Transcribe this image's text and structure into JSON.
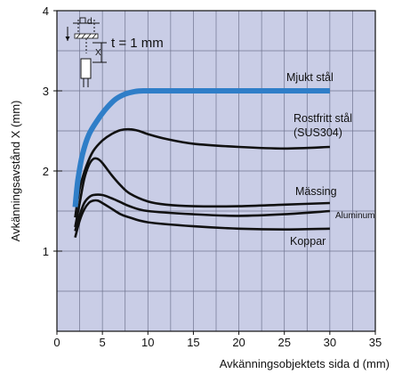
{
  "chart_data": {
    "type": "line",
    "ylabel": "Avkänningsavstånd X (mm)",
    "xlabel": "Avkänningsobjektets sida d (mm)",
    "xlim": [
      0,
      35
    ],
    "ylim": [
      0,
      4
    ],
    "x_ticks": [
      "0",
      "5",
      "10",
      "15",
      "20",
      "25",
      "30",
      "35"
    ],
    "y_ticks": [
      "1",
      "2",
      "3",
      "4"
    ],
    "grid": true,
    "background": "#c9cde6",
    "inset": {
      "t_label": "t = 1 mm",
      "d_label": "d",
      "x_label": "X"
    },
    "series": [
      {
        "name": "Mjukt stål",
        "color": "#2f7ec8",
        "x": [
          2,
          2.3,
          2.8,
          3.5,
          4.5,
          5.5,
          6.5,
          7.5,
          8.5,
          9.5,
          12,
          15,
          20,
          25,
          30
        ],
        "y": [
          1.55,
          1.88,
          2.2,
          2.45,
          2.64,
          2.79,
          2.9,
          2.96,
          2.99,
          3.0,
          3.0,
          3.0,
          3.0,
          3.0,
          3.0
        ]
      },
      {
        "name": "Rostfritt stål (SUS304)",
        "color": "#111111",
        "x": [
          2,
          2.5,
          3.2,
          4,
          5,
          6,
          7,
          8,
          9,
          10,
          12,
          15,
          20,
          25,
          30
        ],
        "y": [
          1.42,
          1.78,
          2.05,
          2.25,
          2.38,
          2.46,
          2.51,
          2.52,
          2.5,
          2.46,
          2.4,
          2.34,
          2.3,
          2.28,
          2.3
        ]
      },
      {
        "name": "Mässing",
        "color": "#111111",
        "x": [
          2,
          2.5,
          3,
          3.5,
          4,
          4.5,
          5,
          6,
          7,
          8,
          10,
          12,
          15,
          20,
          25,
          30
        ],
        "y": [
          1.3,
          1.6,
          1.9,
          2.07,
          2.15,
          2.15,
          2.1,
          1.95,
          1.82,
          1.72,
          1.62,
          1.58,
          1.56,
          1.56,
          1.58,
          1.6
        ]
      },
      {
        "name": "Aluminum",
        "color": "#111111",
        "x": [
          2,
          2.5,
          3,
          3.5,
          4,
          5,
          6,
          7,
          8,
          10,
          15,
          20,
          25,
          30
        ],
        "y": [
          1.25,
          1.45,
          1.6,
          1.67,
          1.7,
          1.7,
          1.66,
          1.61,
          1.56,
          1.5,
          1.46,
          1.44,
          1.46,
          1.5
        ]
      },
      {
        "name": "Koppar",
        "color": "#111111",
        "x": [
          2,
          2.5,
          3,
          3.5,
          4,
          4.5,
          5,
          6,
          7,
          8,
          10,
          15,
          20,
          25,
          30
        ],
        "y": [
          1.17,
          1.38,
          1.52,
          1.6,
          1.63,
          1.63,
          1.6,
          1.53,
          1.46,
          1.42,
          1.36,
          1.31,
          1.28,
          1.27,
          1.28
        ]
      }
    ]
  }
}
